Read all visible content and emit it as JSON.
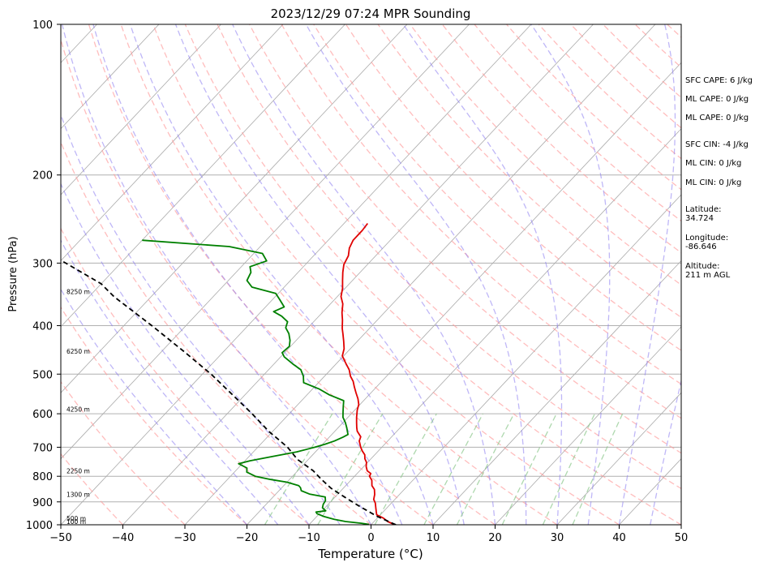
{
  "chart_data": {
    "type": "line",
    "subtype": "skew-t log-p sounding",
    "title": "2023/12/29 07:24 MPR Sounding",
    "xlabel": "Temperature (°C)",
    "ylabel": "Pressure (hPa)",
    "xlim": [
      -50,
      50
    ],
    "ylim": [
      1000,
      100
    ],
    "y_scale": "log",
    "grid": true,
    "x_ticks": [
      "−50",
      "−40",
      "−30",
      "−20",
      "−10",
      "0",
      "10",
      "20",
      "30",
      "40",
      "50"
    ],
    "y_ticks": [
      "100",
      "200",
      "300",
      "400",
      "500",
      "600",
      "700",
      "800",
      "900",
      "1000"
    ],
    "height_labels": [
      {
        "p": 1000,
        "label": "100 m"
      },
      {
        "p": 970,
        "label": "500 m"
      },
      {
        "p": 870,
        "label": "1300 m"
      },
      {
        "p": 780,
        "label": "2250 m"
      },
      {
        "p": 588,
        "label": "4250 m"
      },
      {
        "p": 450,
        "label": "6250 m"
      },
      {
        "p": 342,
        "label": "8250 m"
      }
    ],
    "series": [
      {
        "role": "temperature",
        "color": "#e00000",
        "points": [
          [
            3.8,
            1000
          ],
          [
            2.2,
            985
          ],
          [
            1.0,
            970
          ],
          [
            -0.6,
            955
          ],
          [
            -1.2,
            940
          ],
          [
            -1.8,
            925
          ],
          [
            -2.6,
            905
          ],
          [
            -3.4,
            890
          ],
          [
            -4.0,
            870
          ],
          [
            -4.8,
            850
          ],
          [
            -5.8,
            835
          ],
          [
            -6.6,
            815
          ],
          [
            -7.6,
            800
          ],
          [
            -7.8,
            790
          ],
          [
            -8.8,
            780
          ],
          [
            -9.6,
            765
          ],
          [
            -10.2,
            750
          ],
          [
            -11.0,
            738
          ],
          [
            -11.6,
            725
          ],
          [
            -12.6,
            712
          ],
          [
            -13.4,
            700
          ],
          [
            -14.0,
            690
          ],
          [
            -14.6,
            680
          ],
          [
            -15.0,
            667
          ],
          [
            -16.4,
            650
          ],
          [
            -17.0,
            640
          ],
          [
            -17.8,
            625
          ],
          [
            -18.6,
            610
          ],
          [
            -19.6,
            590
          ],
          [
            -20.2,
            575
          ],
          [
            -21.2,
            560
          ],
          [
            -22.4,
            545
          ],
          [
            -23.6,
            530
          ],
          [
            -24.6,
            517
          ],
          [
            -25.8,
            505
          ],
          [
            -27.0,
            490
          ],
          [
            -28.6,
            475
          ],
          [
            -30.2,
            460
          ],
          [
            -31.0,
            445
          ],
          [
            -32.2,
            430
          ],
          [
            -33.4,
            416
          ],
          [
            -34.4,
            405
          ],
          [
            -35.6,
            390
          ],
          [
            -36.8,
            377
          ],
          [
            -38.0,
            362
          ],
          [
            -39.4,
            350
          ],
          [
            -40.4,
            337
          ],
          [
            -41.6,
            325
          ],
          [
            -42.8,
            313
          ],
          [
            -43.8,
            302
          ],
          [
            -44.4,
            290
          ],
          [
            -45.4,
            280
          ],
          [
            -46.0,
            270
          ],
          [
            -46.0,
            258
          ],
          [
            -46.2,
            250
          ]
        ]
      },
      {
        "role": "dewpoint",
        "color": "#008000",
        "points": [
          [
            -0.4,
            998
          ],
          [
            -1.8,
            993
          ],
          [
            -4.6,
            985
          ],
          [
            -6.8,
            975
          ],
          [
            -8.8,
            963
          ],
          [
            -10.4,
            950
          ],
          [
            -10.8,
            943
          ],
          [
            -9.4,
            938
          ],
          [
            -10.4,
            925
          ],
          [
            -10.8,
            910
          ],
          [
            -11.0,
            895
          ],
          [
            -11.6,
            880
          ],
          [
            -14.6,
            868
          ],
          [
            -16.4,
            855
          ],
          [
            -17.0,
            843
          ],
          [
            -17.6,
            835
          ],
          [
            -20.0,
            822
          ],
          [
            -23.0,
            812
          ],
          [
            -26.0,
            800
          ],
          [
            -28.0,
            785
          ],
          [
            -28.6,
            770
          ],
          [
            -30.6,
            755
          ],
          [
            -29.2,
            745
          ],
          [
            -26.2,
            730
          ],
          [
            -23.0,
            715
          ],
          [
            -20.8,
            700
          ],
          [
            -19.6,
            690
          ],
          [
            -18.6,
            680
          ],
          [
            -17.8,
            668
          ],
          [
            -17.4,
            660
          ],
          [
            -18.0,
            650
          ],
          [
            -18.6,
            640
          ],
          [
            -19.6,
            625
          ],
          [
            -20.8,
            610
          ],
          [
            -21.6,
            595
          ],
          [
            -22.4,
            580
          ],
          [
            -23.2,
            565
          ],
          [
            -26.4,
            550
          ],
          [
            -29.0,
            535
          ],
          [
            -32.4,
            520
          ],
          [
            -33.4,
            505
          ],
          [
            -34.8,
            490
          ],
          [
            -37.0,
            477
          ],
          [
            -39.4,
            462
          ],
          [
            -40.4,
            453
          ],
          [
            -40.2,
            440
          ],
          [
            -41.0,
            428
          ],
          [
            -42.2,
            415
          ],
          [
            -43.6,
            404
          ],
          [
            -44.2,
            393
          ],
          [
            -46.0,
            383
          ],
          [
            -48.0,
            375
          ],
          [
            -47.0,
            367
          ],
          [
            -48.8,
            355
          ],
          [
            -50.4,
            345
          ],
          [
            -55.2,
            335
          ],
          [
            -57.0,
            325
          ],
          [
            -57.6,
            313
          ],
          [
            -58.6,
            305
          ],
          [
            -56.8,
            297
          ],
          [
            -58.6,
            287
          ],
          [
            -65.0,
            278
          ],
          [
            -80.0,
            270
          ]
        ]
      },
      {
        "role": "parcel",
        "color": "#000000",
        "dashed": true,
        "points": [
          [
            4.0,
            1000
          ],
          [
            -0.5,
            960
          ],
          [
            -5.0,
            915
          ],
          [
            -8.5,
            880
          ],
          [
            -12.0,
            845
          ],
          [
            -15.0,
            810
          ],
          [
            -17.5,
            780
          ],
          [
            -21.8,
            740
          ],
          [
            -25.2,
            700
          ],
          [
            -30.7,
            650
          ],
          [
            -36.0,
            600
          ],
          [
            -42.0,
            550
          ],
          [
            -48.6,
            500
          ],
          [
            -56.5,
            450
          ],
          [
            -65.5,
            400
          ],
          [
            -76.0,
            350
          ],
          [
            -80.0,
            330
          ],
          [
            -92.0,
            290
          ],
          [
            -104.0,
            255
          ]
        ]
      }
    ]
  },
  "stats": [
    {
      "key": "sfc_cape",
      "text": "SFC CAPE: 6 J/kg"
    },
    {
      "key": "ml_cape_1",
      "text": "ML CAPE: 0 J/kg"
    },
    {
      "key": "ml_cape_2",
      "text": "ML CAPE: 0 J/kg"
    },
    {
      "key": "sfc_cin",
      "text": "SFC CIN: -4 J/kg"
    },
    {
      "key": "ml_cin_1",
      "text": "ML CIN: 0 J/kg"
    },
    {
      "key": "ml_cin_2",
      "text": "ML CIN: 0 J/kg"
    },
    {
      "key": "latitude",
      "text": "Latitude:\n34.724"
    },
    {
      "key": "longitude",
      "text": "Longitude:\n-86.646"
    },
    {
      "key": "altitude",
      "text": "Altitude:\n211 m AGL"
    }
  ],
  "colors": {
    "isotherm": "#aaaaaa",
    "dry_adiabat": "#ff9999",
    "moist_adiabat": "#8a7cf0",
    "mixing_ratio": "#8cc88c",
    "temperature": "#e00000",
    "dewpoint": "#008000",
    "parcel": "#000000"
  }
}
